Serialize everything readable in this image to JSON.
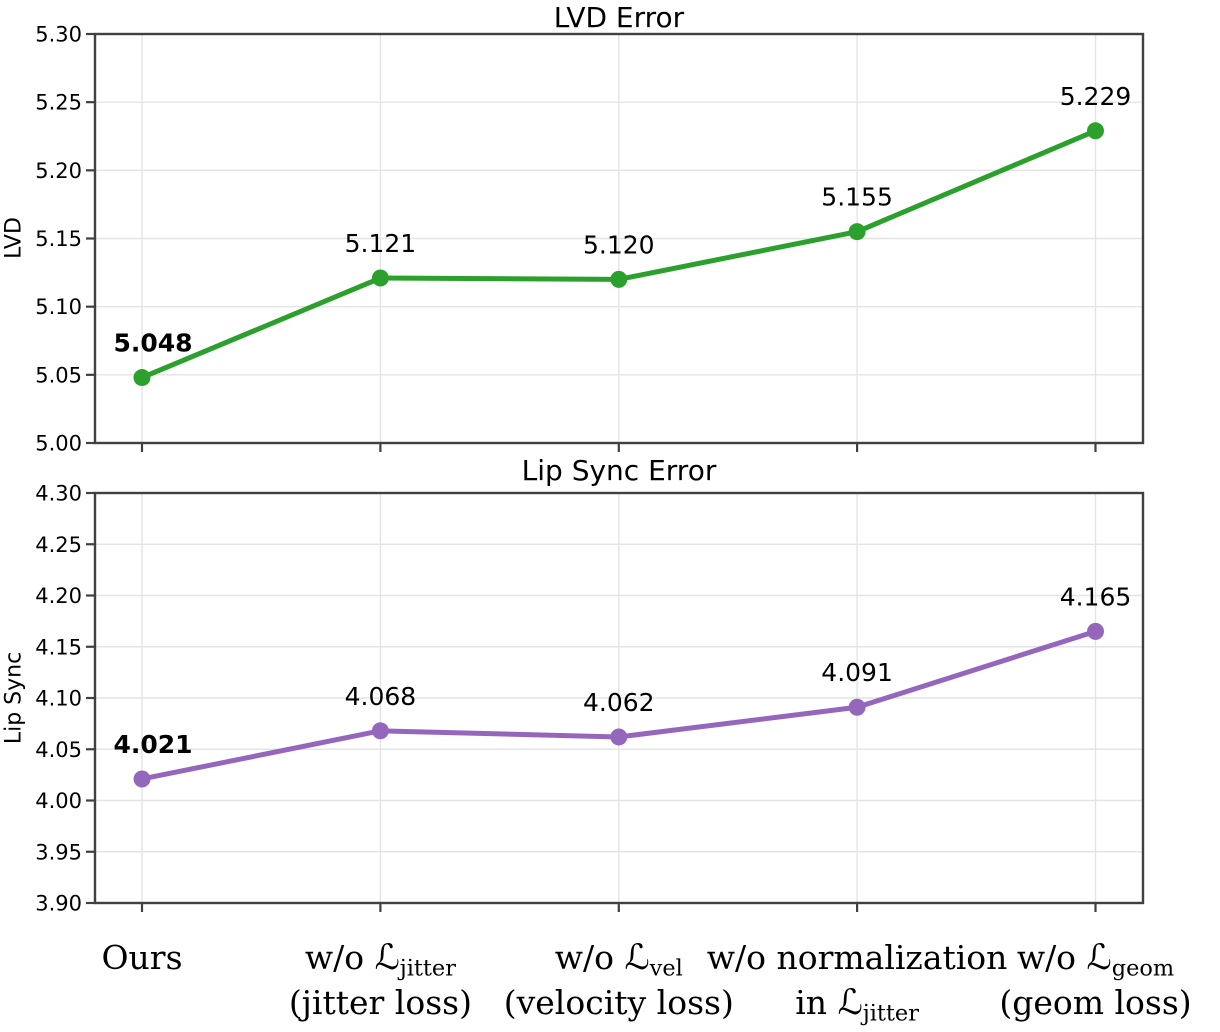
{
  "figure": {
    "background": "#ffffff",
    "spine_color": "#404040",
    "grid_color": "#e4e4e4",
    "text_color": "#000000"
  },
  "x_axis": {
    "categories": [
      {
        "text": "Ours",
        "lines": [
          [
            {
              "t": "Ours"
            }
          ]
        ]
      },
      {
        "text": "w/o ℒjitter (jitter loss)",
        "lines": [
          [
            {
              "t": "w/o "
            },
            {
              "t": "ℒ",
              "cal": true
            },
            {
              "t": "jitter",
              "sub": true
            }
          ],
          [
            {
              "t": "(jitter loss)"
            }
          ]
        ]
      },
      {
        "text": "w/o ℒvel (velocity loss)",
        "lines": [
          [
            {
              "t": "w/o "
            },
            {
              "t": "ℒ",
              "cal": true
            },
            {
              "t": "vel",
              "sub": true
            }
          ],
          [
            {
              "t": "(velocity loss)"
            }
          ]
        ]
      },
      {
        "text": "w/o normalization in ℒjitter",
        "lines": [
          [
            {
              "t": "w/o normalization"
            }
          ],
          [
            {
              "t": "in "
            },
            {
              "t": "ℒ",
              "cal": true
            },
            {
              "t": "jitter",
              "sub": true
            }
          ]
        ]
      },
      {
        "text": "w/o ℒgeom (geom loss)",
        "lines": [
          [
            {
              "t": "w/o "
            },
            {
              "t": "ℒ",
              "cal": true
            },
            {
              "t": "geom",
              "sub": true
            }
          ],
          [
            {
              "t": "(geom loss)"
            }
          ]
        ]
      }
    ]
  },
  "chart_data": [
    {
      "type": "line",
      "title": "LVD Error",
      "ylabel": "LVD",
      "ylim": [
        5.0,
        5.3
      ],
      "yticks": [
        5.0,
        5.05,
        5.1,
        5.15,
        5.2,
        5.25,
        5.3
      ],
      "ytick_labels": [
        "5.00",
        "5.05",
        "5.10",
        "5.15",
        "5.20",
        "5.25",
        "5.30"
      ],
      "grid": true,
      "series": [
        {
          "name": "LVD error",
          "color": "#2ca02c",
          "values": [
            5.048,
            5.121,
            5.12,
            5.155,
            5.229
          ],
          "point_labels": [
            "5.048",
            "5.121",
            "5.120",
            "5.155",
            "5.229"
          ],
          "bold_label_index": 0
        }
      ]
    },
    {
      "type": "line",
      "title": "Lip Sync Error",
      "ylabel": "Lip Sync",
      "ylim": [
        3.9,
        4.3
      ],
      "yticks": [
        3.9,
        3.95,
        4.0,
        4.05,
        4.1,
        4.15,
        4.2,
        4.25,
        4.3
      ],
      "ytick_labels": [
        "3.90",
        "3.95",
        "4.00",
        "4.05",
        "4.10",
        "4.15",
        "4.20",
        "4.25",
        "4.30"
      ],
      "grid": true,
      "series": [
        {
          "name": "Lip sync error",
          "color": "#9467bd",
          "values": [
            4.021,
            4.068,
            4.062,
            4.091,
            4.165
          ],
          "point_labels": [
            "4.021",
            "4.068",
            "4.062",
            "4.091",
            "4.165"
          ],
          "bold_label_index": 0
        }
      ]
    }
  ]
}
